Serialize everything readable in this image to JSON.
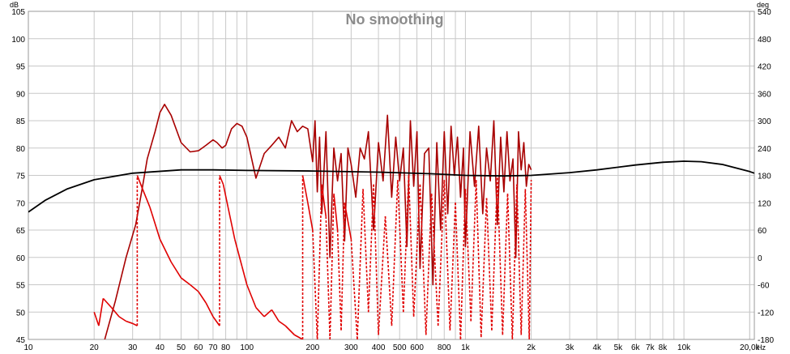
{
  "chart_data": {
    "type": "line",
    "title": "No smoothing",
    "xlabel": "Hz",
    "ylabel": "dB",
    "y2label": "deg",
    "x_scale": "log",
    "xlim": [
      10,
      21000
    ],
    "ylim": [
      45,
      105
    ],
    "y2lim": [
      -180,
      540
    ],
    "grid": true,
    "x_ticks": [
      {
        "v": 10,
        "t": "10"
      },
      {
        "v": 20,
        "t": "20"
      },
      {
        "v": 30,
        "t": "30"
      },
      {
        "v": 40,
        "t": "40"
      },
      {
        "v": 50,
        "t": "50"
      },
      {
        "v": 60,
        "t": "60"
      },
      {
        "v": 70,
        "t": "70"
      },
      {
        "v": 80,
        "t": "80"
      },
      {
        "v": 100,
        "t": "100"
      },
      {
        "v": 200,
        "t": "200"
      },
      {
        "v": 300,
        "t": "300"
      },
      {
        "v": 400,
        "t": "400"
      },
      {
        "v": 500,
        "t": "500"
      },
      {
        "v": 600,
        "t": "600"
      },
      {
        "v": 800,
        "t": "800"
      },
      {
        "v": 1000,
        "t": "1k"
      },
      {
        "v": 2000,
        "t": "2k"
      },
      {
        "v": 3000,
        "t": "3k"
      },
      {
        "v": 4000,
        "t": "4k"
      },
      {
        "v": 5000,
        "t": "5k"
      },
      {
        "v": 6000,
        "t": "6k"
      },
      {
        "v": 7000,
        "t": "7k"
      },
      {
        "v": 8000,
        "t": "8k"
      },
      {
        "v": 10000,
        "t": "10k"
      },
      {
        "v": 20000,
        "t": "20,0k"
      }
    ],
    "y_ticks": [
      45,
      50,
      55,
      60,
      65,
      70,
      75,
      80,
      85,
      90,
      95,
      100,
      105
    ],
    "y2_ticks": [
      -180,
      -120,
      -60,
      0,
      60,
      120,
      180,
      240,
      300,
      360,
      420,
      480,
      540
    ],
    "colors": {
      "spl": "#a80000",
      "phase": "#e00000",
      "black": "#000000",
      "grid": "#c8c8c8"
    },
    "series": [
      {
        "key": "spl",
        "axis": "left",
        "style": "solid",
        "x": [
          20,
          22,
          25,
          28,
          31,
          33,
          35,
          38,
          40,
          42,
          45,
          50,
          55,
          60,
          65,
          70,
          73,
          77,
          80,
          85,
          90,
          95,
          100,
          110,
          120,
          130,
          140,
          150,
          160,
          170,
          180,
          190,
          200,
          205,
          210,
          215,
          220,
          230,
          240,
          250,
          260,
          270,
          280,
          290,
          300,
          315,
          330,
          345,
          360,
          380,
          400,
          420,
          440,
          460,
          480,
          500,
          520,
          540,
          560,
          580,
          600,
          620,
          650,
          680,
          710,
          740,
          770,
          800,
          830,
          860,
          890,
          920,
          950,
          980,
          1000,
          1050,
          1100,
          1150,
          1200,
          1250,
          1300,
          1350,
          1400,
          1450,
          1500,
          1550,
          1600,
          1650,
          1700,
          1750,
          1800,
          1850,
          1900,
          1950,
          2000
        ],
        "y": [
          40,
          44,
          52,
          60,
          66,
          72,
          78,
          83,
          86.5,
          88,
          86,
          81,
          79.3,
          79.5,
          80.5,
          81.5,
          81,
          80,
          80.5,
          83.5,
          84.5,
          84,
          82,
          74.5,
          79,
          80.5,
          82,
          80,
          85,
          83,
          84,
          83.5,
          77.5,
          85,
          72,
          82,
          68,
          83,
          60,
          80,
          74,
          79,
          63,
          80,
          77,
          71,
          80,
          78,
          83,
          65,
          81,
          74,
          86,
          71,
          82,
          74,
          80,
          62,
          85,
          73,
          83,
          58,
          79,
          80,
          55,
          81,
          65,
          83,
          68,
          84,
          75,
          82,
          71,
          80,
          62,
          83,
          73,
          84,
          68,
          80,
          74,
          85,
          66,
          82,
          72,
          83,
          74,
          78,
          60,
          83,
          76,
          81,
          73,
          77,
          76
        ]
      },
      {
        "key": "phase",
        "axis": "right",
        "style": "solid-dashed",
        "x": [
          20,
          21,
          22,
          24,
          26,
          28,
          30,
          31.5,
          31.5,
          33,
          36,
          40,
          45,
          50,
          55,
          60,
          65,
          70,
          75,
          75,
          78,
          82,
          88,
          95,
          100,
          110,
          120,
          130,
          140,
          150,
          165,
          180,
          180,
          190,
          200,
          210,
          220,
          230,
          240,
          250,
          260,
          270,
          280,
          300,
          320,
          340,
          360,
          380,
          400,
          430,
          460,
          490,
          520,
          550,
          580,
          620,
          660,
          700,
          750,
          800,
          850,
          900,
          950,
          1000,
          1060,
          1120,
          1180,
          1250,
          1320,
          1400,
          1480,
          1560,
          1640,
          1720,
          1800,
          1880,
          1960,
          2000
        ],
        "y": [
          -120,
          -150,
          -90,
          -110,
          -130,
          -140,
          -145,
          -150,
          180,
          155,
          110,
          40,
          -10,
          -45,
          -60,
          -75,
          -100,
          -130,
          -150,
          180,
          160,
          110,
          40,
          -20,
          -60,
          -110,
          -130,
          -115,
          -140,
          -150,
          -170,
          -180,
          180,
          120,
          60,
          -180,
          160,
          90,
          -180,
          140,
          60,
          -160,
          120,
          40,
          -180,
          150,
          -120,
          160,
          -170,
          90,
          -150,
          170,
          -120,
          180,
          -130,
          160,
          -170,
          140,
          -150,
          170,
          -160,
          120,
          -180,
          150,
          -140,
          170,
          -175,
          130,
          -160,
          175,
          -170,
          140,
          -180,
          160,
          -170,
          150,
          -180,
          170
        ]
      },
      {
        "key": "black",
        "axis": "left",
        "style": "solid",
        "x": [
          10,
          12,
          15,
          20,
          30,
          50,
          70,
          100,
          200,
          400,
          700,
          1000,
          1500,
          2000,
          3000,
          4000,
          6000,
          8000,
          10000,
          12000,
          15000,
          20000,
          21000
        ],
        "y": [
          68.3,
          70.5,
          72.5,
          74.2,
          75.4,
          76,
          76,
          75.9,
          75.8,
          75.6,
          75.3,
          75,
          74.9,
          75,
          75.5,
          76,
          76.9,
          77.4,
          77.6,
          77.5,
          77,
          75.7,
          75.4
        ]
      }
    ]
  }
}
